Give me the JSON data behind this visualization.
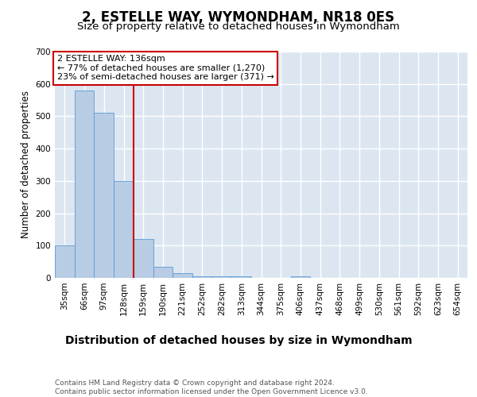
{
  "title": "2, ESTELLE WAY, WYMONDHAM, NR18 0ES",
  "subtitle": "Size of property relative to detached houses in Wymondham",
  "xlabel": "Distribution of detached houses by size in Wymondham",
  "ylabel": "Number of detached properties",
  "categories": [
    "35sqm",
    "66sqm",
    "97sqm",
    "128sqm",
    "159sqm",
    "190sqm",
    "221sqm",
    "252sqm",
    "282sqm",
    "313sqm",
    "344sqm",
    "375sqm",
    "406sqm",
    "437sqm",
    "468sqm",
    "499sqm",
    "530sqm",
    "561sqm",
    "592sqm",
    "623sqm",
    "654sqm"
  ],
  "values": [
    100,
    580,
    510,
    300,
    120,
    35,
    14,
    6,
    4,
    5,
    0,
    0,
    6,
    0,
    0,
    0,
    0,
    0,
    0,
    0,
    0
  ],
  "bar_color": "#b8cce4",
  "bar_edge_color": "#5b9bd5",
  "background_color": "#dce6f1",
  "grid_color": "#ffffff",
  "annotation_box_text": "2 ESTELLE WAY: 136sqm\n← 77% of detached houses are smaller (1,270)\n23% of semi-detached houses are larger (371) →",
  "annotation_box_color": "#ffffff",
  "annotation_box_edgecolor": "#cc0000",
  "vline_x": 3.5,
  "vline_color": "#cc0000",
  "ylim": [
    0,
    700
  ],
  "yticks": [
    0,
    100,
    200,
    300,
    400,
    500,
    600,
    700
  ],
  "footnote": "Contains HM Land Registry data © Crown copyright and database right 2024.\nContains public sector information licensed under the Open Government Licence v3.0.",
  "title_fontsize": 12,
  "subtitle_fontsize": 9.5,
  "xlabel_fontsize": 10,
  "ylabel_fontsize": 8.5,
  "tick_fontsize": 7.5,
  "annotation_fontsize": 8,
  "footnote_fontsize": 6.5
}
